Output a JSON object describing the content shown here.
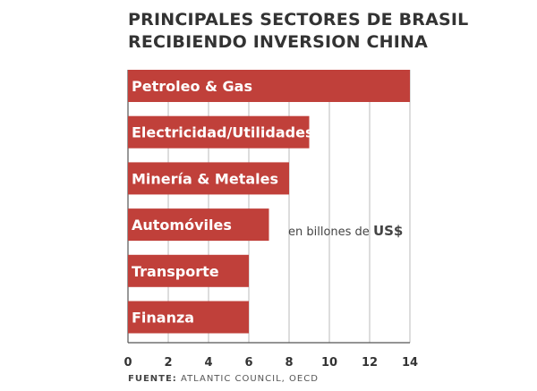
{
  "title_lines": [
    "PRINCIPALES SECTORES DE BRASIL",
    "RECIBIENDO INVERSION CHINA"
  ],
  "source_label": "FUENTE:",
  "source_text": "ATLANTIC COUNCIL, OECD",
  "unit_note": {
    "text": "en billones de ",
    "currency": "US$"
  },
  "colors": {
    "bar": "#c0403a",
    "bar_text": "#ffffff",
    "grid": "#bbbbbb",
    "text": "#333333"
  },
  "chart_data": {
    "type": "bar",
    "orientation": "horizontal",
    "categories": [
      "Petroleo & Gas",
      "Electricidad/Utilidades",
      "Minería & Metales",
      "Automóviles",
      "Transporte",
      "Finanza"
    ],
    "values": [
      14,
      9,
      8,
      7,
      6,
      6
    ],
    "xlim": [
      0,
      14
    ],
    "xticks": [
      0,
      2,
      4,
      6,
      8,
      10,
      12,
      14
    ],
    "grid": true,
    "labels_inside_bars": true
  }
}
